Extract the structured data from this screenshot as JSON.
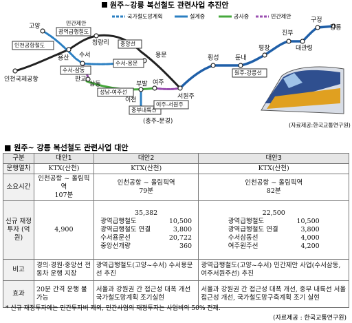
{
  "map": {
    "title": "원주~강릉 복선철도 관련사업 추진안",
    "legend": [
      "국가철도망계획",
      "설계중",
      "공사중",
      "민간제안"
    ],
    "stations": [
      "인천국제공항",
      "인천공항철도",
      "고양",
      "민간제안",
      "광역급행철도",
      "청량리",
      "용산",
      "중앙선",
      "수서",
      "용문",
      "수서-용문",
      "수서-삼동",
      "판교",
      "삼동",
      "성남-여주선",
      "부발",
      "여주",
      "이천",
      "중부내륙선",
      "(충주-문경)",
      "서원주",
      "여주-서원주",
      "횡성",
      "둔내",
      "원주-강릉선",
      "평창",
      "진부",
      "대관령",
      "구정",
      "강릉"
    ],
    "source": "(자료제공:한국교통연구원)"
  },
  "table": {
    "title": "원주~ 강릉 복선철도 관련사업 대안",
    "headers": [
      "구분",
      "대안1",
      "대안2",
      "대안3"
    ],
    "row_labels": [
      "운행열차",
      "소요시간",
      "신규 재정투자 (억원)",
      "비고",
      "효과"
    ],
    "trains": [
      "KTX(산천)",
      "KTX(산천)",
      "KTX(산천)"
    ],
    "times": [
      [
        "인천공항 ~ 올림픽역",
        "107분"
      ],
      [
        "인천공항 ~ 올림픽역",
        "79분"
      ],
      [
        "인천공항 ~ 올림픽역",
        "82분"
      ]
    ],
    "investment": [
      {
        "total": "4,900",
        "items": []
      },
      {
        "total": "35,382",
        "items": [
          {
            "name": "광역급행철도",
            "amount": "10,500"
          },
          {
            "name": "광역급행철도 연결",
            "amount": "3,800"
          },
          {
            "name": "수서용문선",
            "amount": "20,722"
          },
          {
            "name": "중앙선개량",
            "amount": "360"
          }
        ]
      },
      {
        "total": "22,500",
        "items": [
          {
            "name": "광역급행철도",
            "amount": "10,500"
          },
          {
            "name": "광역급행철도 연결",
            "amount": "3,800"
          },
          {
            "name": "수서삼동선",
            "amount": "4,000"
          },
          {
            "name": "여주원주선",
            "amount": "4,200"
          }
        ]
      }
    ],
    "notes": [
      "경의·경원·중앙선 전동차 운행 지장",
      "광역급행철도(고양~수서) 수서용문선 추진",
      "광역급행철도(고양~수서) 민간제안 사업(수서삼동, 여주서원주선) 추진"
    ],
    "effects": [
      "20분 간격 운행 불가능",
      "서울과 강원권 간 접근성 대폭 개선 국가철도망계획 조기실현",
      "서울과 강원권 간 접근성 대폭 개선, 중부 내륙선 서울 접근성 개선, 국가철도망구축계획 조기 실현"
    ],
    "footnote": "* 신규 재정투자에는 민간투자비 제외, 민간사업의 재정투자는 사업비의 50% 전제.",
    "source": "(자료제공 : 한국교통연구원)"
  }
}
